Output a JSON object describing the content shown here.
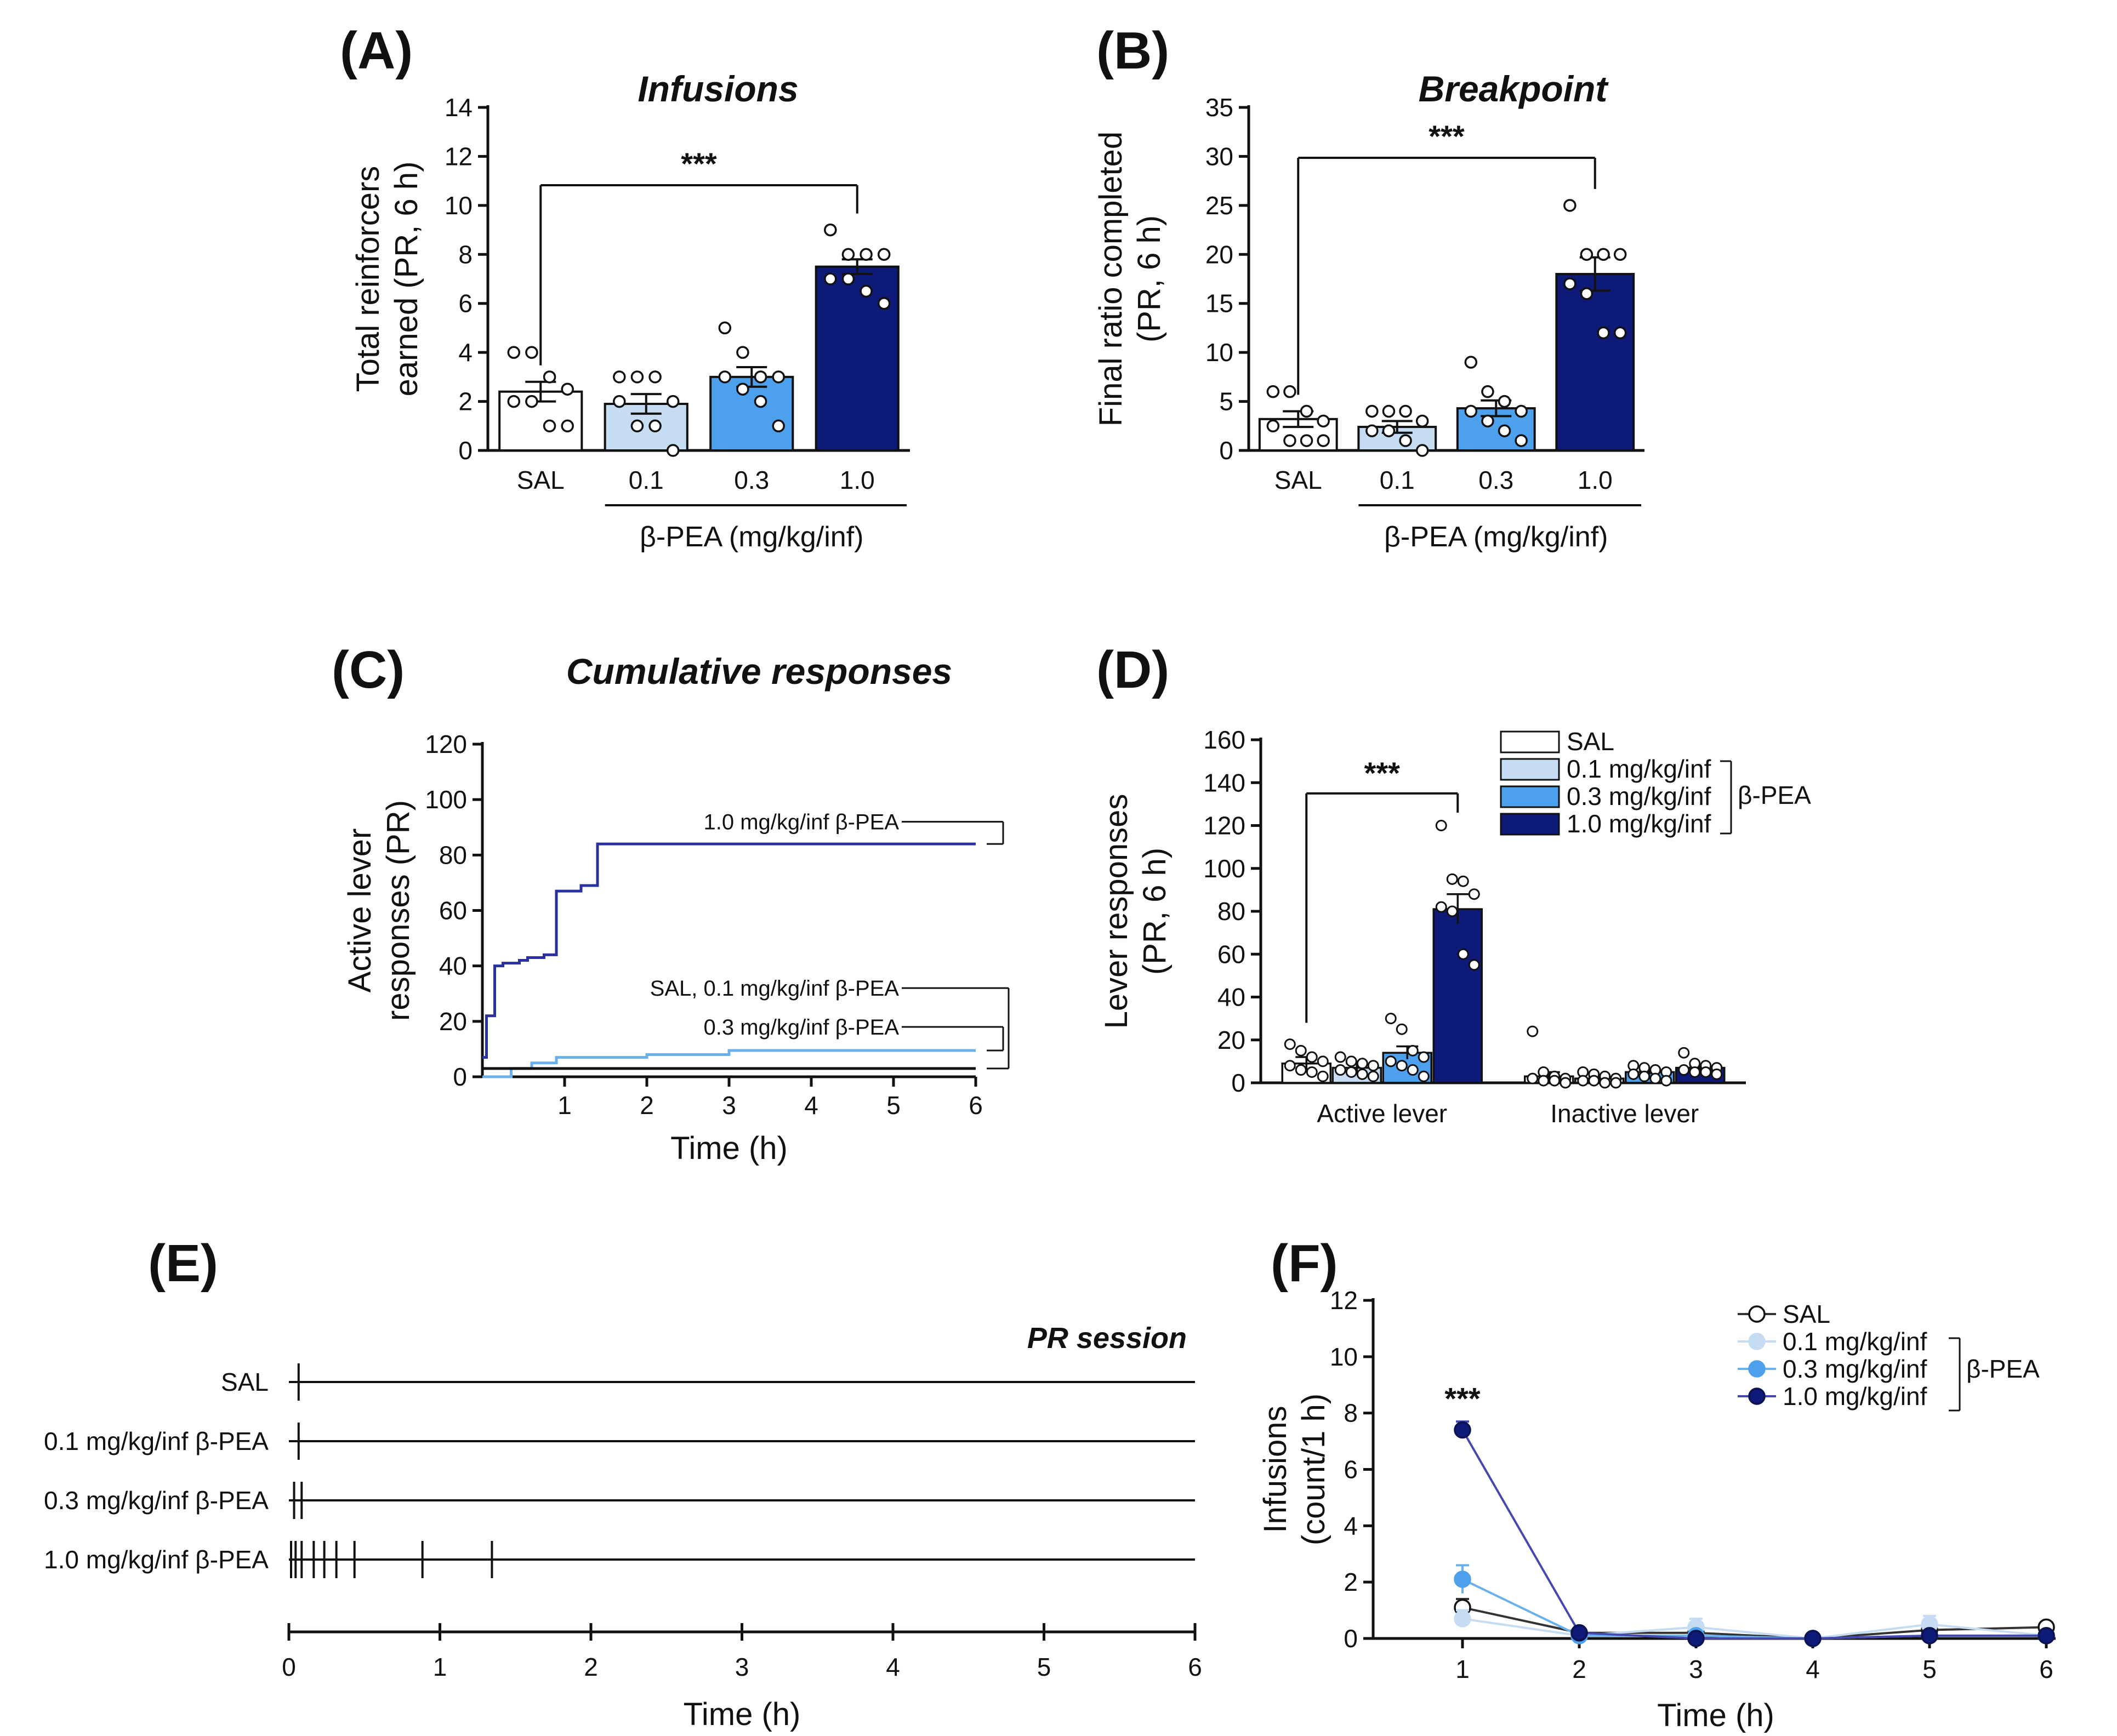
{
  "colors": {
    "sal": "#ffffff",
    "d01": "#c5dcf3",
    "d03": "#4da0ec",
    "d10": "#0d1a78",
    "d03_line": "#6ab0ea",
    "d10_line": "#2a30a0",
    "axis": "#111111"
  },
  "chart_data": [
    {
      "id": "A",
      "type": "bar",
      "panel_label": "(A)",
      "title": "Infusions",
      "ylabel_lines": [
        "Total reinforcers",
        "earned (PR, 6 h)"
      ],
      "categories": [
        "SAL",
        "0.1",
        "0.3",
        "1.0"
      ],
      "group_label": "β-PEA (mg/kg/inf)",
      "values": [
        2.4,
        1.9,
        3.0,
        7.5
      ],
      "errors": [
        0.4,
        0.4,
        0.4,
        0.3
      ],
      "points": [
        [
          4.0,
          4.0,
          3.0,
          2.5,
          2.0,
          2.0,
          1.0,
          1.0
        ],
        [
          3.0,
          3.0,
          3.0,
          2.0,
          2.0,
          1.0,
          1.0,
          0.0
        ],
        [
          5.0,
          4.0,
          3.0,
          3.0,
          3.0,
          2.5,
          2.0,
          1.0
        ],
        [
          9.0,
          8.0,
          8.0,
          8.0,
          7.0,
          7.0,
          6.5,
          6.0
        ]
      ],
      "ylim": [
        0,
        14
      ],
      "yticks": [
        0,
        2,
        4,
        6,
        8,
        10,
        12,
        14
      ],
      "significance": {
        "from": "SAL",
        "to": "1.0",
        "label": "***"
      }
    },
    {
      "id": "B",
      "type": "bar",
      "panel_label": "(B)",
      "title": "Breakpoint",
      "ylabel_lines": [
        "Final ratio completed",
        "(PR, 6 h)"
      ],
      "categories": [
        "SAL",
        "0.1",
        "0.3",
        "1.0"
      ],
      "group_label": "β-PEA (mg/kg/inf)",
      "values": [
        3.2,
        2.4,
        4.3,
        18.0
      ],
      "errors": [
        0.8,
        0.6,
        0.8,
        1.7
      ],
      "points": [
        [
          6.0,
          6.0,
          4.0,
          3.0,
          2.5,
          1.0,
          1.0,
          1.0
        ],
        [
          4.0,
          4.0,
          4.0,
          3.0,
          2.0,
          2.0,
          1.0,
          0.0
        ],
        [
          9.0,
          6.0,
          5.0,
          4.0,
          4.0,
          3.0,
          2.0,
          1.0
        ],
        [
          25.0,
          20.0,
          20.0,
          20.0,
          17.0,
          16.0,
          12.0,
          12.0
        ]
      ],
      "ylim": [
        0,
        35
      ],
      "yticks": [
        0,
        5,
        10,
        15,
        20,
        25,
        30,
        35
      ],
      "significance": {
        "from": "SAL",
        "to": "1.0",
        "label": "***"
      }
    },
    {
      "id": "C",
      "type": "line",
      "panel_label": "(C)",
      "title": "Cumulative responses",
      "ylabel_lines": [
        "Active lever",
        "responses (PR)"
      ],
      "xlabel": "Time (h)",
      "xlim": [
        0,
        6
      ],
      "xticks": [
        1,
        2,
        3,
        4,
        5,
        6
      ],
      "ylim": [
        0,
        120
      ],
      "yticks": [
        0,
        20,
        40,
        60,
        80,
        100,
        120
      ],
      "series": [
        {
          "name": "1.0 mg/kg/inf β-PEA",
          "key": "d10_line",
          "x": [
            0.0,
            0.05,
            0.05,
            0.15,
            0.15,
            0.25,
            0.25,
            0.45,
            0.45,
            0.55,
            0.55,
            0.75,
            0.75,
            0.9,
            0.9,
            1.2,
            1.2,
            1.4,
            1.4,
            6.0
          ],
          "y": [
            7,
            7,
            22,
            22,
            40,
            40,
            41,
            41,
            42,
            42,
            43,
            43,
            44,
            44,
            67,
            67,
            69,
            69,
            84,
            84
          ]
        },
        {
          "name": "0.3 mg/kg/inf β-PEA",
          "key": "d03_line",
          "x": [
            0.0,
            0.35,
            0.35,
            0.6,
            0.6,
            0.9,
            0.9,
            2.0,
            2.0,
            3.0,
            3.0,
            6.0
          ],
          "y": [
            0,
            0,
            3,
            3,
            5,
            5,
            7,
            7,
            8,
            8,
            9.5,
            9.5
          ]
        },
        {
          "name": "SAL, 0.1 mg/kg/inf β-PEA",
          "key": "axis",
          "x": [
            0.0,
            6.0
          ],
          "y": [
            3,
            3
          ]
        }
      ],
      "annotations": [
        "1.0 mg/kg/inf β-PEA",
        "SAL, 0.1 mg/kg/inf β-PEA",
        "0.3 mg/kg/inf β-PEA"
      ]
    },
    {
      "id": "D",
      "type": "bar",
      "panel_label": "(D)",
      "ylabel_lines": [
        "Lever responses",
        "(PR, 6 h)"
      ],
      "categories": [
        "Active lever",
        "Inactive lever"
      ],
      "ylim": [
        0,
        160
      ],
      "yticks": [
        0,
        20,
        40,
        60,
        80,
        100,
        120,
        140,
        160
      ],
      "series": [
        {
          "name": "SAL",
          "key": "sal",
          "values": [
            9,
            3
          ],
          "errors": [
            3,
            2
          ],
          "points": [
            [
              18,
              15,
              12,
              10,
              8,
              6,
              5,
              3
            ],
            [
              24,
              5,
              3,
              2,
              2,
              1,
              1,
              0
            ]
          ]
        },
        {
          "name": "0.1 mg/kg/inf",
          "key": "d01",
          "values": [
            7,
            2
          ],
          "errors": [
            2,
            1
          ],
          "points": [
            [
              12,
              10,
              9,
              8,
              6,
              5,
              4,
              3
            ],
            [
              5,
              4,
              3,
              2,
              1,
              1,
              0,
              0
            ]
          ]
        },
        {
          "name": "0.3 mg/kg/inf",
          "key": "d03",
          "values": [
            14,
            5
          ],
          "errors": [
            3,
            1
          ],
          "points": [
            [
              30,
              25,
              15,
              12,
              10,
              8,
              6,
              3
            ],
            [
              8,
              7,
              6,
              5,
              4,
              3,
              2,
              1
            ]
          ]
        },
        {
          "name": "1.0 mg/kg/inf",
          "key": "d10",
          "values": [
            81,
            7
          ],
          "errors": [
            7,
            1
          ],
          "points": [
            [
              120,
              95,
              94,
              88,
              82,
              80,
              60,
              55
            ],
            [
              14,
              9,
              8,
              7,
              6,
              5,
              5,
              4
            ]
          ]
        }
      ],
      "legend_group": "β-PEA",
      "significance": {
        "label": "***"
      }
    },
    {
      "id": "E",
      "type": "raster",
      "panel_label": "(E)",
      "session_label": "PR session",
      "xlabel": "Time (h)",
      "xlim": [
        0,
        6
      ],
      "xticks": [
        0,
        1,
        2,
        3,
        4,
        5,
        6
      ],
      "rows": [
        {
          "label": "SAL",
          "events": [
            0.05
          ]
        },
        {
          "label": "0.1 mg/kg/inf  β-PEA",
          "events": [
            0.05
          ]
        },
        {
          "label": "0.3 mg/kg/inf  β-PEA",
          "events": [
            0.02,
            0.07
          ]
        },
        {
          "label": "1.0 mg/kg/inf  β-PEA",
          "events": [
            0.0,
            0.03,
            0.07,
            0.15,
            0.22,
            0.3,
            0.42,
            0.87,
            1.33
          ]
        }
      ]
    },
    {
      "id": "F",
      "type": "line",
      "panel_label": "(F)",
      "ylabel_lines": [
        "Infusions",
        "(count/1 h)"
      ],
      "xlabel": "Time (h)",
      "x": [
        1,
        2,
        3,
        4,
        5,
        6
      ],
      "xticks": [
        1,
        2,
        3,
        4,
        5,
        6
      ],
      "ylim": [
        0,
        12
      ],
      "yticks": [
        0,
        2,
        4,
        6,
        8,
        10,
        12
      ],
      "series": [
        {
          "name": "SAL",
          "key": "sal",
          "values": [
            1.1,
            0.2,
            0.2,
            0.0,
            0.3,
            0.4
          ],
          "errors": [
            0.3,
            0.15,
            0.2,
            0.05,
            0.2,
            0.15
          ]
        },
        {
          "name": "0.1 mg/kg/inf",
          "key": "d01",
          "values": [
            0.7,
            0.1,
            0.4,
            0.0,
            0.5,
            0.1
          ],
          "errors": [
            0.3,
            0.1,
            0.3,
            0.05,
            0.3,
            0.1
          ]
        },
        {
          "name": "0.3 mg/kg/inf",
          "key": "d03",
          "values": [
            2.1,
            0.1,
            0.1,
            0.0,
            0.1,
            0.1
          ],
          "errors": [
            0.5,
            0.1,
            0.1,
            0.05,
            0.1,
            0.1
          ]
        },
        {
          "name": "1.0 mg/kg/inf",
          "key": "d10",
          "values": [
            7.4,
            0.2,
            0.0,
            0.0,
            0.1,
            0.1
          ],
          "errors": [
            0.3,
            0.1,
            0.05,
            0.05,
            0.1,
            0.05
          ]
        }
      ],
      "legend_group": "β-PEA",
      "significance": {
        "x": 1,
        "label": "***"
      }
    }
  ]
}
